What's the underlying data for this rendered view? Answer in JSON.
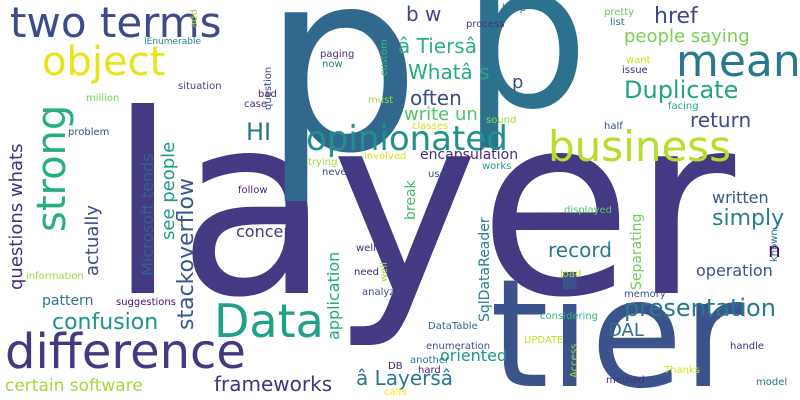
{
  "words": [
    {
      "text": "layer",
      "color": "#443983",
      "rotated": false
    },
    {
      "text": "p",
      "color": "#31688e",
      "rotated": false
    },
    {
      "text": "p",
      "color": "#2c728e",
      "rotated": false
    },
    {
      "text": "tier",
      "color": "#3b528b",
      "rotated": false
    },
    {
      "text": "difference",
      "color": "#453781",
      "rotated": false
    },
    {
      "text": "two terms",
      "color": "#3e4a89",
      "rotated": false
    },
    {
      "text": "object",
      "color": "#e7e419",
      "rotated": false
    },
    {
      "text": "business",
      "color": "#b5de2b",
      "rotated": false
    },
    {
      "text": "mean",
      "color": "#2a788e",
      "rotated": false
    },
    {
      "text": "Data",
      "color": "#1fa187",
      "rotated": false
    },
    {
      "text": "opinionated",
      "color": "#21918c",
      "rotated": false
    },
    {
      "text": "strong",
      "color": "#27ad81",
      "rotated": true
    },
    {
      "text": "Duplicate",
      "color": "#20a486",
      "rotated": false
    },
    {
      "text": "presentation",
      "color": "#2a788e",
      "rotated": false
    },
    {
      "text": "confusion",
      "color": "#21918c",
      "rotated": false
    },
    {
      "text": "frameworks",
      "color": "#46327e",
      "rotated": false
    },
    {
      "text": "certain software",
      "color": "#a0da39",
      "rotated": false
    },
    {
      "text": "Whatâ s",
      "color": "#25ab82",
      "rotated": false
    },
    {
      "text": "â Tiersâ",
      "color": "#2db27d",
      "rotated": false
    },
    {
      "text": "often",
      "color": "#3e4a89",
      "rotated": false
    },
    {
      "text": "people saying",
      "color": "#75d054",
      "rotated": false
    },
    {
      "text": "href",
      "color": "#414487",
      "rotated": false
    },
    {
      "text": "return",
      "color": "#3e4989",
      "rotated": false
    },
    {
      "text": "HI",
      "color": "#2c728e",
      "rotated": false
    },
    {
      "text": "write un",
      "color": "#52c569",
      "rotated": false
    },
    {
      "text": "record",
      "color": "#2a788e",
      "rotated": false
    },
    {
      "text": "simply",
      "color": "#277f8e",
      "rotated": false
    },
    {
      "text": "written",
      "color": "#38588c",
      "rotated": false
    },
    {
      "text": "operation",
      "color": "#3b528b",
      "rotated": false
    },
    {
      "text": "â Layersâ",
      "color": "#2a788e",
      "rotated": false
    },
    {
      "text": "oriented",
      "color": "#1f978b",
      "rotated": false
    },
    {
      "text": "DAL",
      "color": "#2e6e8e",
      "rotated": false
    },
    {
      "text": "b w",
      "color": "#3f4788",
      "rotated": false
    },
    {
      "text": "questions whats",
      "color": "#46307e",
      "rotated": true
    },
    {
      "text": "actually",
      "color": "#3e4c8a",
      "rotated": true
    },
    {
      "text": "Microsoft tends",
      "color": "#33638d",
      "rotated": true
    },
    {
      "text": "see people",
      "color": "#1e9c89",
      "rotated": true
    },
    {
      "text": "stackoverflow",
      "color": "#38588c",
      "rotated": true
    },
    {
      "text": "concept",
      "color": "#46337f",
      "rotated": false
    },
    {
      "text": "application",
      "color": "#22a785",
      "rotated": true
    },
    {
      "text": "pattern",
      "color": "#2a768e",
      "rotated": false
    },
    {
      "text": "SqlDataReader",
      "color": "#277e8e",
      "rotated": true
    },
    {
      "text": "Separating",
      "color": "#6ece58",
      "rotated": true
    },
    {
      "text": "break",
      "color": "#3dbc74",
      "rotated": true
    },
    {
      "text": "encapsulation",
      "color": "#472d7b",
      "rotated": false
    },
    {
      "text": "n",
      "color": "#440154",
      "rotated": false
    },
    {
      "text": "p",
      "color": "#3e4c8a",
      "rotated": false
    },
    {
      "text": "IEnumerable",
      "color": "#26818e",
      "rotated": false
    },
    {
      "text": "paging",
      "color": "#472c7a",
      "rotated": false
    },
    {
      "text": "situation",
      "color": "#433e85",
      "rotated": false
    },
    {
      "text": "million",
      "color": "#7ad151",
      "rotated": false
    },
    {
      "text": "problem",
      "color": "#3b528b",
      "rotated": false
    },
    {
      "text": "suggestions",
      "color": "#440f76",
      "rotated": false
    },
    {
      "text": "information",
      "color": "#9bd93c",
      "rotated": false
    },
    {
      "text": "custom",
      "color": "#35b779",
      "rotated": true
    },
    {
      "text": "now",
      "color": "#297a8e",
      "rotated": false
    },
    {
      "text": "question",
      "color": "#3e4a89",
      "rotated": true
    },
    {
      "text": "add",
      "color": "#a8db34",
      "rotated": true
    },
    {
      "text": "bad",
      "color": "#482878",
      "rotated": false
    },
    {
      "text": "case",
      "color": "#46307e",
      "rotated": false
    },
    {
      "text": "must",
      "color": "#a0da39",
      "rotated": false
    },
    {
      "text": "classes",
      "color": "#d0e11c",
      "rotated": false
    },
    {
      "text": "sound",
      "color": "#9bd93c",
      "rotated": false
    },
    {
      "text": "half",
      "color": "#3e4a89",
      "rotated": false
    },
    {
      "text": "involved",
      "color": "#d8e219",
      "rotated": false
    },
    {
      "text": "trying",
      "color": "#a5db36",
      "rotated": false
    },
    {
      "text": "never",
      "color": "#3f4889",
      "rotated": false
    },
    {
      "text": "use",
      "color": "#3b528b",
      "rotated": false
    },
    {
      "text": "works",
      "color": "#1fa088",
      "rotated": false
    },
    {
      "text": "follow",
      "color": "#482475",
      "rotated": false
    },
    {
      "text": "well",
      "color": "#482878",
      "rotated": false
    },
    {
      "text": "displayed",
      "color": "#52c569",
      "rotated": false
    },
    {
      "text": "well",
      "color": "#a8db34",
      "rotated": true
    },
    {
      "text": "need",
      "color": "#482374",
      "rotated": false
    },
    {
      "text": "analyze",
      "color": "#3e4a89",
      "rotated": false
    },
    {
      "text": "considering",
      "color": "#31b57b",
      "rotated": false
    },
    {
      "text": "DataTable",
      "color": "#32648e",
      "rotated": false
    },
    {
      "text": "enumeration",
      "color": "#3b528b",
      "rotated": false
    },
    {
      "text": "DB",
      "color": "#482374",
      "rotated": false
    },
    {
      "text": "another",
      "color": "#2a788e",
      "rotated": false
    },
    {
      "text": "hard",
      "color": "#482878",
      "rotated": false
    },
    {
      "text": "calls",
      "color": "#fde725",
      "rotated": false
    },
    {
      "text": "UPDATE",
      "color": "#c2df23",
      "rotated": false
    },
    {
      "text": "Access",
      "color": "#a8db34",
      "rotated": true
    },
    {
      "text": "method",
      "color": "#46307e",
      "rotated": false
    },
    {
      "text": "Thanks",
      "color": "#d5e21a",
      "rotated": false
    },
    {
      "text": "load",
      "color": "#b8de29",
      "rotated": false
    },
    {
      "text": "memory",
      "color": "#3b528b",
      "rotated": false
    },
    {
      "text": "handle",
      "color": "#46307e",
      "rotated": false
    },
    {
      "text": "model",
      "color": "#2c728e",
      "rotated": false
    },
    {
      "text": "known",
      "color": "#2c728e",
      "rotated": true
    },
    {
      "text": "process",
      "color": "#46327e",
      "rotated": false
    },
    {
      "text": "keep",
      "color": "#2e6e8e",
      "rotated": false
    },
    {
      "text": "pretty",
      "color": "#67cc5c",
      "rotated": false
    },
    {
      "text": "list",
      "color": "#2c728e",
      "rotated": false
    },
    {
      "text": "want",
      "color": "#d0e11c",
      "rotated": false
    },
    {
      "text": "issue",
      "color": "#482878",
      "rotated": false
    },
    {
      "text": "facing",
      "color": "#1f9e89",
      "rotated": false
    }
  ]
}
